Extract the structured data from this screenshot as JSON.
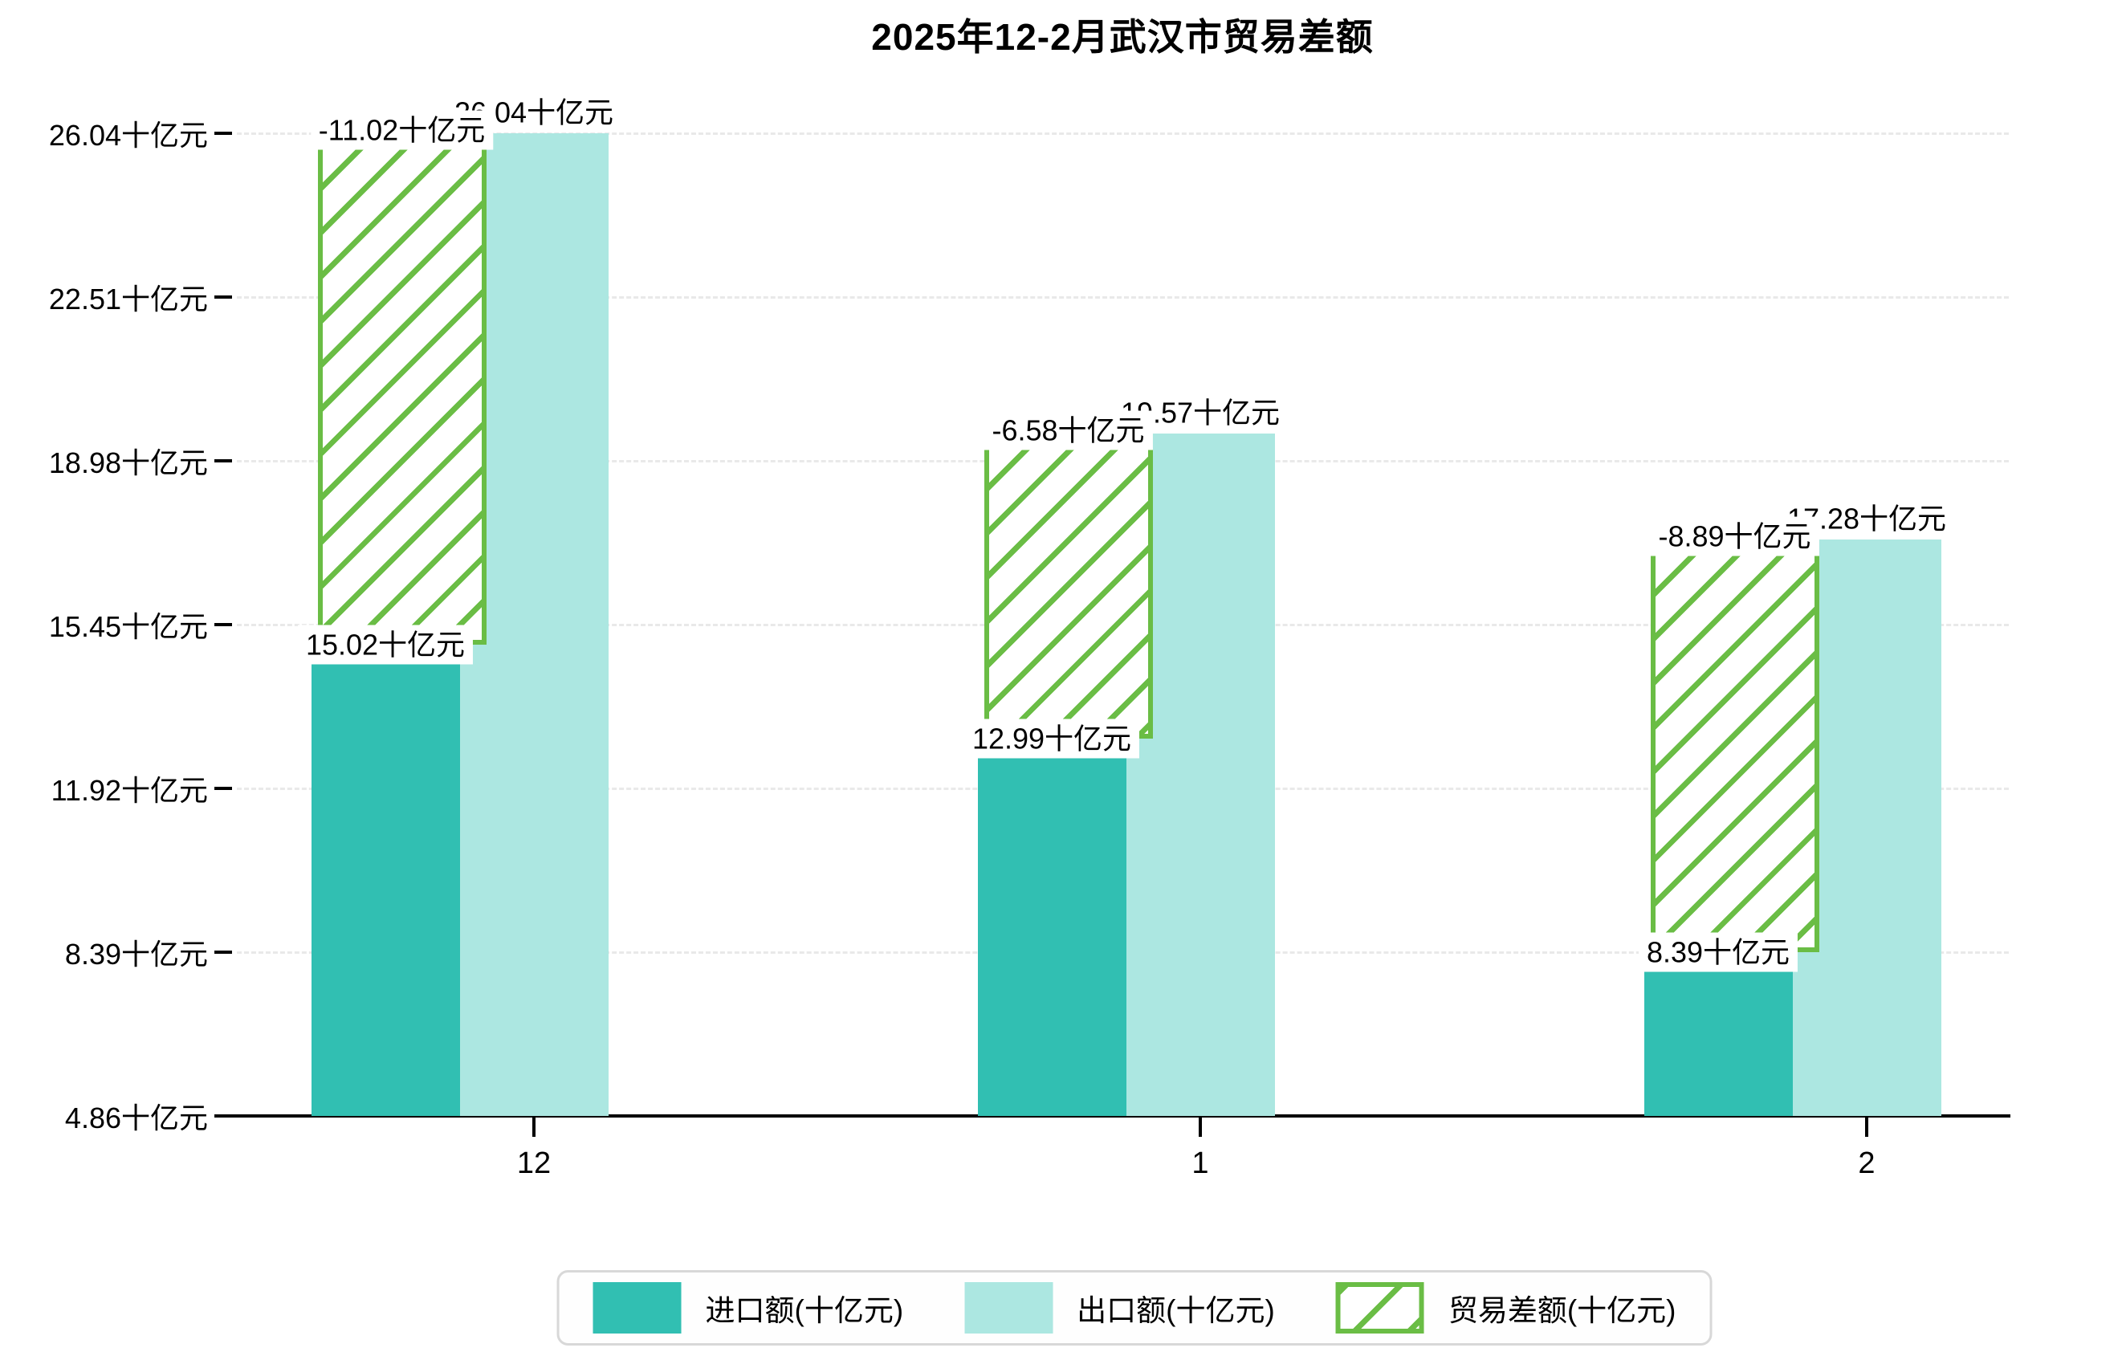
{
  "chart_data": {
    "type": "bar",
    "title": "2025年12-2月武汉市贸易差额",
    "xlabel": "",
    "ylabel": "",
    "categories": [
      "12",
      "1",
      "2"
    ],
    "series": [
      {
        "name": "进口额(十亿元)",
        "values": [
          15.02,
          12.99,
          8.39
        ],
        "labels": [
          "15.02十亿元",
          "12.99十亿元",
          "8.39十亿元"
        ],
        "color": "#31bfb2",
        "style": "solid"
      },
      {
        "name": "出口额(十亿元)",
        "values": [
          26.04,
          19.57,
          17.28
        ],
        "labels": [
          "26.04十亿元",
          "19.57十亿元",
          "17.28十亿元"
        ],
        "color": "#ace7e1",
        "style": "solid"
      },
      {
        "name": "贸易差额(十亿元)",
        "values": [
          -11.02,
          -6.58,
          -8.89
        ],
        "labels": [
          "-11.02十亿元",
          "-6.58十亿元",
          "-8.89十亿元"
        ],
        "color": "#6abd45",
        "style": "hatched",
        "note": "drawn as hatched span from import top to export top"
      }
    ],
    "y_ticks": [
      {
        "value": 4.86,
        "label": "4.86十亿元"
      },
      {
        "value": 8.39,
        "label": "8.39十亿元"
      },
      {
        "value": 11.92,
        "label": "11.92十亿元"
      },
      {
        "value": 15.45,
        "label": "15.45十亿元"
      },
      {
        "value": 18.98,
        "label": "18.98十亿元"
      },
      {
        "value": 22.51,
        "label": "22.51十亿元"
      },
      {
        "value": 26.04,
        "label": "26.04十亿元"
      }
    ],
    "ylim": [
      4.86,
      26.04
    ],
    "grid": "horizontal dashed",
    "legend_position": "bottom"
  },
  "colors": {
    "import_bar": "#31bfb2",
    "export_bar": "#ace7e1",
    "balance_hatch": "#6abd45",
    "gridline": "#e9e9e9",
    "axis": "#000000",
    "legend_border": "#d8d8d8",
    "background": "#ffffff"
  }
}
